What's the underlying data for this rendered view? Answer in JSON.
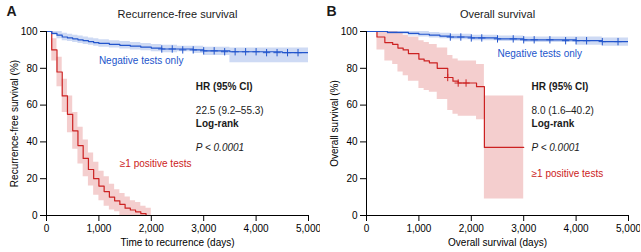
{
  "chart_data": [
    {
      "type": "line",
      "line_style": "step",
      "grid": false,
      "title": "Recurrence-free survival",
      "xlabel": "Time to recurrence (days)",
      "ylabel": "Recurrence-free survival (%)",
      "annotations": [
        "A",
        "HR (95% CI)",
        "22.5 (9.2–55.3)",
        "Log-rank",
        "P < 0.0001"
      ],
      "xlim": [
        0,
        5000
      ],
      "ylim": [
        0,
        100
      ],
      "xticks": [
        0,
        {
          "value": 1000,
          "label": "1,000"
        },
        {
          "value": 2000,
          "label": "2,000"
        },
        {
          "value": 3000,
          "label": "3,000"
        },
        {
          "value": 4000,
          "label": "4,000"
        },
        {
          "value": 5000,
          "label": "5,000"
        }
      ],
      "yticks": [
        0,
        20,
        40,
        60,
        80,
        100
      ],
      "series": [
        {
          "name": "≥1 positive tests",
          "color": "#cc2222",
          "x": [
            0,
            100,
            200,
            300,
            400,
            500,
            600,
            700,
            800,
            900,
            1000,
            1100,
            1200,
            1300,
            1400,
            1500,
            1600,
            1700,
            1800,
            1900,
            2000
          ],
          "values": [
            100,
            90,
            78,
            65,
            55,
            46,
            38,
            31,
            25,
            20,
            16,
            13,
            10,
            8,
            6,
            4,
            3,
            2,
            1,
            0,
            0
          ],
          "ci_upper": [
            100,
            96,
            86,
            74,
            65,
            56,
            48,
            41,
            34,
            29,
            24,
            21,
            17,
            14,
            12,
            10,
            8,
            7,
            5,
            4,
            4
          ],
          "ci_lower": [
            100,
            84,
            70,
            56,
            45,
            36,
            28,
            21,
            16,
            11,
            8,
            5,
            3,
            2,
            0,
            0,
            0,
            0,
            0,
            0,
            0
          ]
        },
        {
          "name": "Negative tests only",
          "color": "#2255cc",
          "x": [
            0,
            100,
            200,
            300,
            400,
            500,
            600,
            700,
            800,
            900,
            1000,
            1200,
            1400,
            1600,
            1800,
            2000,
            2200,
            2500,
            2800,
            3000,
            3500,
            4000,
            4500,
            5000
          ],
          "values": [
            100,
            99,
            98,
            97,
            96.5,
            96,
            95.5,
            95,
            94.5,
            94,
            93.5,
            93,
            92.5,
            92,
            91.5,
            91,
            90.5,
            90.5,
            90,
            89.5,
            89,
            89,
            88.5,
            88.5
          ],
          "ci_upper": [
            100,
            100,
            100,
            99,
            98.5,
            98,
            97.5,
            97,
            96.5,
            96,
            95.5,
            95,
            94.5,
            94,
            93.5,
            93,
            92.5,
            92,
            92,
            91.5,
            91,
            91,
            91,
            91
          ],
          "ci_lower": [
            100,
            98,
            96,
            95,
            94.5,
            94,
            93.5,
            93,
            92.5,
            92,
            91.5,
            91,
            90.5,
            90,
            89.5,
            89,
            88.5,
            89,
            88,
            87,
            83,
            83,
            83,
            83
          ],
          "censors_x": [
            2200,
            2400,
            2600,
            2800,
            3000,
            3200,
            3400,
            3600,
            3800,
            4000,
            4200,
            4400,
            4600,
            4800
          ],
          "censors_y": [
            90.5,
            90.5,
            90,
            90,
            89.5,
            89.5,
            89,
            89,
            89,
            89,
            88.5,
            88.5,
            88.5,
            88.5
          ]
        }
      ]
    },
    {
      "type": "line",
      "line_style": "step",
      "grid": false,
      "title": "Overall survival",
      "xlabel": "Overall survival (days)",
      "ylabel": "Overall survival (%)",
      "annotations": [
        "B",
        "HR (95% CI)",
        "8.0 (1.6–40.2)",
        "Log-rank",
        "P < 0.0001"
      ],
      "xlim": [
        0,
        5000
      ],
      "ylim": [
        0,
        100
      ],
      "xticks": [
        0,
        {
          "value": 1000,
          "label": "1,000"
        },
        {
          "value": 2000,
          "label": "2,000"
        },
        {
          "value": 3000,
          "label": "3,000"
        },
        {
          "value": 4000,
          "label": "4,000"
        },
        {
          "value": 5000,
          "label": "5,000"
        }
      ],
      "yticks": [
        0,
        20,
        40,
        60,
        80,
        100
      ],
      "series": [
        {
          "name": "≥1 positive tests",
          "color": "#cc2222",
          "x": [
            0,
            200,
            350,
            500,
            600,
            700,
            800,
            1000,
            1100,
            1200,
            1350,
            1450,
            1550,
            1650,
            1750,
            1900,
            2100,
            2200,
            2250,
            2400,
            2500,
            2600,
            2700,
            2800,
            3000
          ],
          "values": [
            100,
            97,
            94,
            93,
            91,
            90,
            88,
            85,
            84,
            83,
            80,
            80,
            75,
            73,
            72,
            72,
            70,
            70,
            37,
            37,
            37,
            37,
            37,
            37,
            37
          ],
          "ci_upper": [
            100,
            100,
            100,
            100,
            99,
            98,
            97,
            95,
            94,
            93,
            91,
            91,
            87,
            85,
            84,
            84,
            82,
            82,
            65,
            65,
            65,
            65,
            65,
            65,
            65
          ],
          "ci_lower": [
            100,
            90,
            84,
            82,
            78,
            76,
            73,
            69,
            68,
            67,
            63,
            63,
            57,
            55,
            54,
            54,
            52,
            52,
            9,
            9,
            9,
            9,
            9,
            9,
            9
          ],
          "censors_x": [
            1550,
            1750,
            1900
          ],
          "censors_y": [
            75,
            72,
            72
          ]
        },
        {
          "name": "Negative tests only",
          "color": "#2255cc",
          "x": [
            0,
            200,
            400,
            600,
            800,
            1000,
            1200,
            1400,
            1600,
            1800,
            2000,
            2200,
            2500,
            2800,
            3000,
            3500,
            4000,
            4500,
            5000
          ],
          "values": [
            100,
            100,
            99.5,
            99.5,
            99,
            98.5,
            98,
            97.5,
            97,
            97,
            96.5,
            96.5,
            96,
            96,
            95.5,
            95.5,
            95,
            94.5,
            94.5
          ],
          "ci_upper": [
            100,
            100,
            100,
            100,
            100,
            100,
            99.5,
            99,
            98.5,
            98.5,
            98,
            98,
            97.5,
            97.5,
            97,
            97,
            97,
            96.5,
            96.5
          ],
          "ci_lower": [
            100,
            99.5,
            98.5,
            98.5,
            97.5,
            97,
            96.5,
            96,
            95.5,
            95.5,
            95,
            95,
            94.5,
            94.5,
            94,
            94,
            92.5,
            92,
            92
          ],
          "censors_x": [
            1600,
            1800,
            2000,
            2200,
            2500,
            2800,
            3000,
            3200,
            3500,
            3800,
            4000,
            4200,
            4500,
            4800
          ],
          "censors_y": [
            97,
            97,
            96.5,
            96.5,
            96,
            96,
            95.5,
            95.5,
            95.5,
            95,
            95,
            95,
            94.5,
            94.5
          ]
        }
      ]
    }
  ]
}
